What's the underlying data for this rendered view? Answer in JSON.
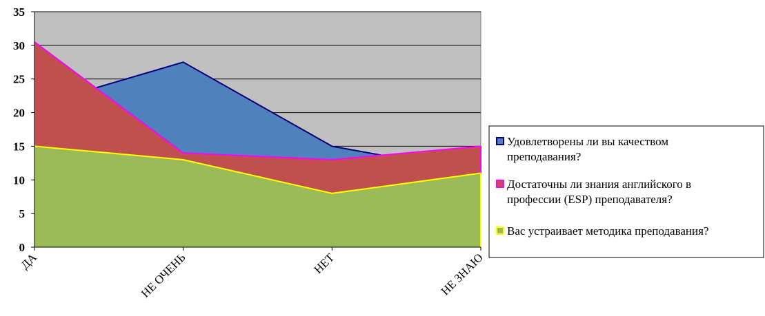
{
  "chart_data": {
    "type": "area",
    "categories": [
      "ДА",
      "НЕ ОЧЕНЬ",
      "НЕТ",
      "НЕ ЗНАЮ"
    ],
    "series": [
      {
        "name": "Удовлетворены ли вы качеством преподавания?",
        "values": [
          21,
          27.5,
          15,
          11
        ],
        "fill": "#4f81bd",
        "stroke": "#000080",
        "legend_lines": [
          "Удовлетворены ли вы качеством",
          "преподавания?"
        ]
      },
      {
        "name": "Достаточны ли знания английского в профессии (ESP) преподавателя?",
        "values": [
          30.5,
          14,
          13,
          15
        ],
        "fill": "#c0504d",
        "stroke": "#ff00ff",
        "legend_lines": [
          "Достаточны ли знания английского в",
          "профессии (ESP) преподавателя?"
        ]
      },
      {
        "name": "Вас устраивает методика преподавания?",
        "values": [
          15,
          13,
          8,
          11
        ],
        "fill": "#9bbb59",
        "stroke": "#ffff00",
        "legend_lines": [
          "Вас устраивает методика преподавания?"
        ]
      }
    ],
    "y_ticks": [
      0,
      5,
      10,
      15,
      20,
      25,
      30,
      35
    ],
    "ylim": [
      0,
      35
    ],
    "grid": true,
    "plot_background": "#c0c0c0",
    "legend_position": "right"
  }
}
